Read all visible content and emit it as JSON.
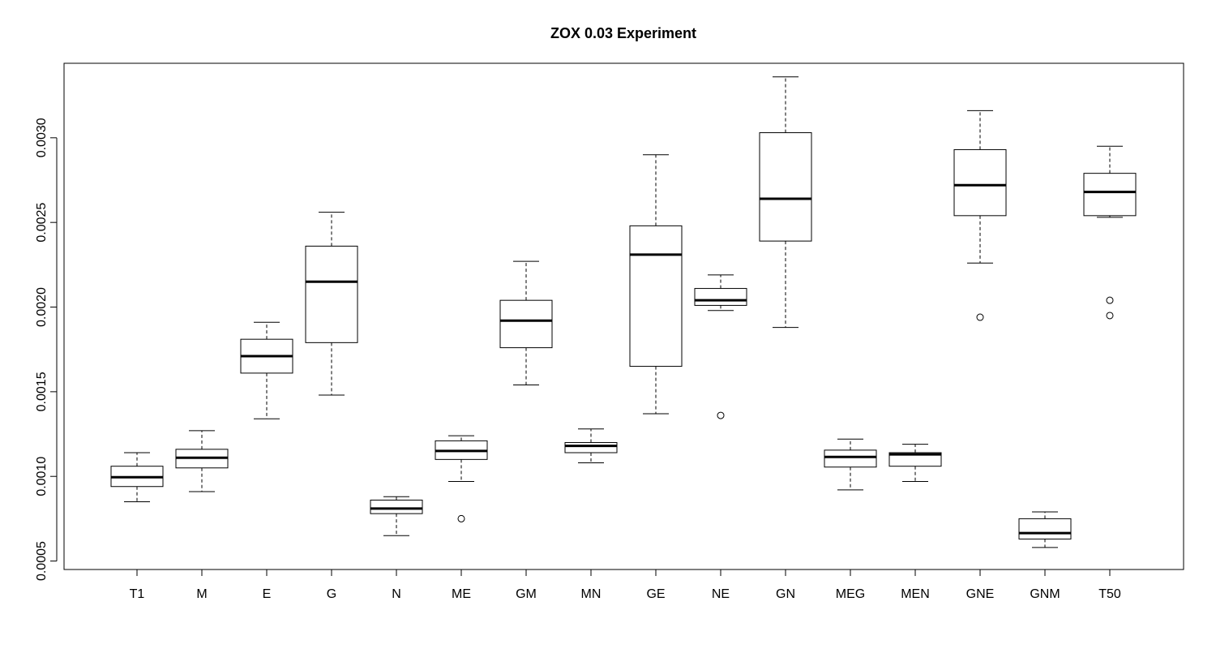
{
  "chart_data": {
    "type": "boxplot",
    "title": "ZOX 0.03 Experiment",
    "xlabel": "",
    "ylabel": "",
    "ylim": [
      0.00045,
      0.00344
    ],
    "yticks": [
      0.0005,
      0.001,
      0.0015,
      0.002,
      0.0025,
      0.003
    ],
    "ytick_labels": [
      "0.0005",
      "0.0010",
      "0.0015",
      "0.0020",
      "0.0025",
      "0.0030"
    ],
    "grid": false,
    "legend": "none",
    "categories": [
      "T1",
      "M",
      "E",
      "G",
      "N",
      "ME",
      "GM",
      "MN",
      "GE",
      "NE",
      "GN",
      "MEG",
      "MEN",
      "GNE",
      "GNM",
      "T50"
    ],
    "boxes": [
      {
        "name": "T1",
        "whisker_low": 0.00085,
        "q1": 0.00094,
        "median": 0.000995,
        "q3": 0.00106,
        "whisker_high": 0.00114,
        "outliers": []
      },
      {
        "name": "M",
        "whisker_low": 0.00091,
        "q1": 0.00105,
        "median": 0.00111,
        "q3": 0.00116,
        "whisker_high": 0.00127,
        "outliers": []
      },
      {
        "name": "E",
        "whisker_low": 0.00134,
        "q1": 0.00161,
        "median": 0.00171,
        "q3": 0.00181,
        "whisker_high": 0.00191,
        "outliers": []
      },
      {
        "name": "G",
        "whisker_low": 0.00148,
        "q1": 0.00179,
        "median": 0.00215,
        "q3": 0.00236,
        "whisker_high": 0.00256,
        "outliers": []
      },
      {
        "name": "N",
        "whisker_low": 0.00065,
        "q1": 0.00078,
        "median": 0.00081,
        "q3": 0.00086,
        "whisker_high": 0.00088,
        "outliers": []
      },
      {
        "name": "ME",
        "whisker_low": 0.00097,
        "q1": 0.0011,
        "median": 0.00115,
        "q3": 0.00121,
        "whisker_high": 0.00124,
        "outliers": [
          0.00075
        ]
      },
      {
        "name": "GM",
        "whisker_low": 0.00154,
        "q1": 0.00176,
        "median": 0.00192,
        "q3": 0.00204,
        "whisker_high": 0.00227,
        "outliers": []
      },
      {
        "name": "MN",
        "whisker_low": 0.00108,
        "q1": 0.00114,
        "median": 0.00118,
        "q3": 0.0012,
        "whisker_high": 0.00128,
        "outliers": []
      },
      {
        "name": "GE",
        "whisker_low": 0.00137,
        "q1": 0.00165,
        "median": 0.00231,
        "q3": 0.00248,
        "whisker_high": 0.0029,
        "outliers": []
      },
      {
        "name": "NE",
        "whisker_low": 0.00198,
        "q1": 0.00201,
        "median": 0.00204,
        "q3": 0.00211,
        "whisker_high": 0.00219,
        "outliers": [
          0.00136
        ]
      },
      {
        "name": "GN",
        "whisker_low": 0.00188,
        "q1": 0.00239,
        "median": 0.00264,
        "q3": 0.00303,
        "whisker_high": 0.00336,
        "outliers": []
      },
      {
        "name": "MEG",
        "whisker_low": 0.00092,
        "q1": 0.001055,
        "median": 0.001115,
        "q3": 0.001155,
        "whisker_high": 0.00122,
        "outliers": []
      },
      {
        "name": "MEN",
        "whisker_low": 0.00097,
        "q1": 0.00106,
        "median": 0.00113,
        "q3": 0.00114,
        "whisker_high": 0.00119,
        "outliers": []
      },
      {
        "name": "GNE",
        "whisker_low": 0.00226,
        "q1": 0.00254,
        "median": 0.00272,
        "q3": 0.00293,
        "whisker_high": 0.00316,
        "outliers": [
          0.00194
        ]
      },
      {
        "name": "GNM",
        "whisker_low": 0.00058,
        "q1": 0.00063,
        "median": 0.000665,
        "q3": 0.00075,
        "whisker_high": 0.00079,
        "outliers": []
      },
      {
        "name": "T50",
        "whisker_low": 0.00253,
        "q1": 0.00254,
        "median": 0.00268,
        "q3": 0.00279,
        "whisker_high": 0.00295,
        "outliers": [
          0.00204,
          0.00195
        ]
      }
    ]
  }
}
